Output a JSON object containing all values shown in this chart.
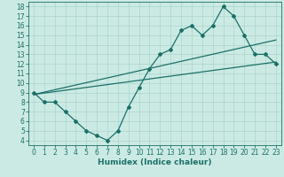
{
  "xlabel": "Humidex (Indice chaleur)",
  "xlim": [
    -0.5,
    23.5
  ],
  "ylim": [
    3.5,
    18.5
  ],
  "yticks": [
    4,
    5,
    6,
    7,
    8,
    9,
    10,
    11,
    12,
    13,
    14,
    15,
    16,
    17,
    18
  ],
  "xticks": [
    0,
    1,
    2,
    3,
    4,
    5,
    6,
    7,
    8,
    9,
    10,
    11,
    12,
    13,
    14,
    15,
    16,
    17,
    18,
    19,
    20,
    21,
    22,
    23
  ],
  "bg_color": "#cceae4",
  "grid_color": "#aad4cc",
  "line_color": "#1a7068",
  "line1_x": [
    0,
    1,
    2,
    3,
    4,
    5,
    6,
    7,
    8,
    9,
    10,
    11,
    12,
    13,
    14,
    15,
    16,
    17,
    18,
    19,
    20,
    21,
    22,
    23
  ],
  "line1_y": [
    9,
    8,
    8,
    7,
    6,
    5,
    4.5,
    4,
    5,
    7.5,
    9.5,
    11.5,
    13,
    13.5,
    15.5,
    16,
    15,
    16,
    18,
    17,
    15,
    13,
    13,
    12
  ],
  "line2_x": [
    0,
    23
  ],
  "line2_y": [
    8.8,
    12.2
  ],
  "line3_x": [
    0,
    23
  ],
  "line3_y": [
    8.8,
    14.5
  ],
  "marker": "D",
  "markersize": 2.0,
  "linewidth": 0.9,
  "tick_fontsize": 5.5,
  "xlabel_fontsize": 6.5
}
